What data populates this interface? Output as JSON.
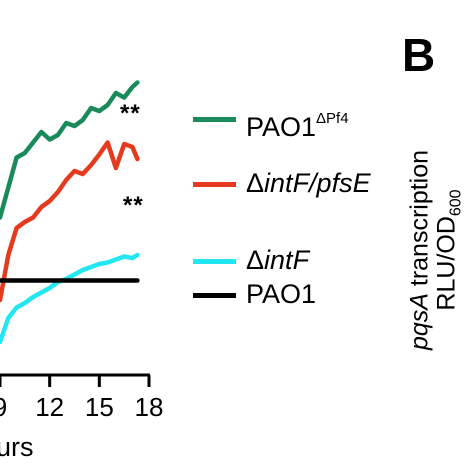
{
  "panel_letter": "B",
  "y_axis_title": {
    "line1_italic": "pqsA",
    "line1_rest": " transcription",
    "line2_main": "RLU/OD",
    "line2_sub": "600"
  },
  "x_axis_title_visible": "urs",
  "significance": [
    "**",
    "**"
  ],
  "legend": [
    {
      "base": "PAO1",
      "sup": "ΔPf4",
      "italic": "",
      "color": "#1b8a5a"
    },
    {
      "base": "Δ",
      "sup": "",
      "italic": "intF/pfsE",
      "color": "#e63a1e"
    },
    {
      "base": "Δ",
      "sup": "",
      "italic": "intF",
      "color": "#22e6f0"
    },
    {
      "base": "PAO1",
      "sup": "",
      "italic": "",
      "color": "#000000"
    }
  ],
  "chart_data": {
    "type": "line",
    "xlabel": "urs",
    "x_ticks": [
      "9",
      "12",
      "15",
      "18"
    ],
    "xlim": [
      9,
      18
    ],
    "ylim": [
      0.5,
      2.6
    ],
    "grid": false,
    "legend_position": "right",
    "series": [
      {
        "name": "PAO1ΔPf4",
        "color": "#1b8a5a",
        "x": [
          9.0,
          9.5,
          10.0,
          10.5,
          11.0,
          11.5,
          12.0,
          12.5,
          13.0,
          13.5,
          14.0,
          14.5,
          15.0,
          15.5,
          16.0,
          16.5,
          17.0,
          17.3
        ],
        "y": [
          1.55,
          1.75,
          1.95,
          1.98,
          2.05,
          2.12,
          2.07,
          2.1,
          2.18,
          2.16,
          2.2,
          2.28,
          2.26,
          2.3,
          2.38,
          2.35,
          2.42,
          2.45
        ]
      },
      {
        "name": "ΔintF/pfsE",
        "color": "#e63a1e",
        "x": [
          9.0,
          9.5,
          10.0,
          10.5,
          11.0,
          11.5,
          12.0,
          12.5,
          13.0,
          13.5,
          14.0,
          14.5,
          15.0,
          15.5,
          16.0,
          16.5,
          17.0,
          17.3
        ],
        "y": [
          1.0,
          1.3,
          1.48,
          1.52,
          1.55,
          1.62,
          1.66,
          1.72,
          1.8,
          1.86,
          1.84,
          1.9,
          1.97,
          2.05,
          1.88,
          2.04,
          2.02,
          1.94
        ]
      },
      {
        "name": "ΔintF",
        "color": "#22e6f0",
        "x": [
          9.0,
          9.5,
          10.0,
          10.5,
          11.0,
          11.5,
          12.0,
          12.5,
          13.0,
          13.5,
          14.0,
          14.5,
          15.0,
          15.5,
          16.0,
          16.5,
          17.0,
          17.3
        ],
        "y": [
          0.72,
          0.88,
          0.95,
          0.98,
          1.02,
          1.05,
          1.08,
          1.12,
          1.14,
          1.17,
          1.2,
          1.22,
          1.24,
          1.25,
          1.27,
          1.29,
          1.28,
          1.3
        ]
      },
      {
        "name": "PAO1",
        "color": "#000000",
        "x": [
          9.0,
          17.3
        ],
        "y": [
          1.13,
          1.13
        ]
      }
    ]
  }
}
